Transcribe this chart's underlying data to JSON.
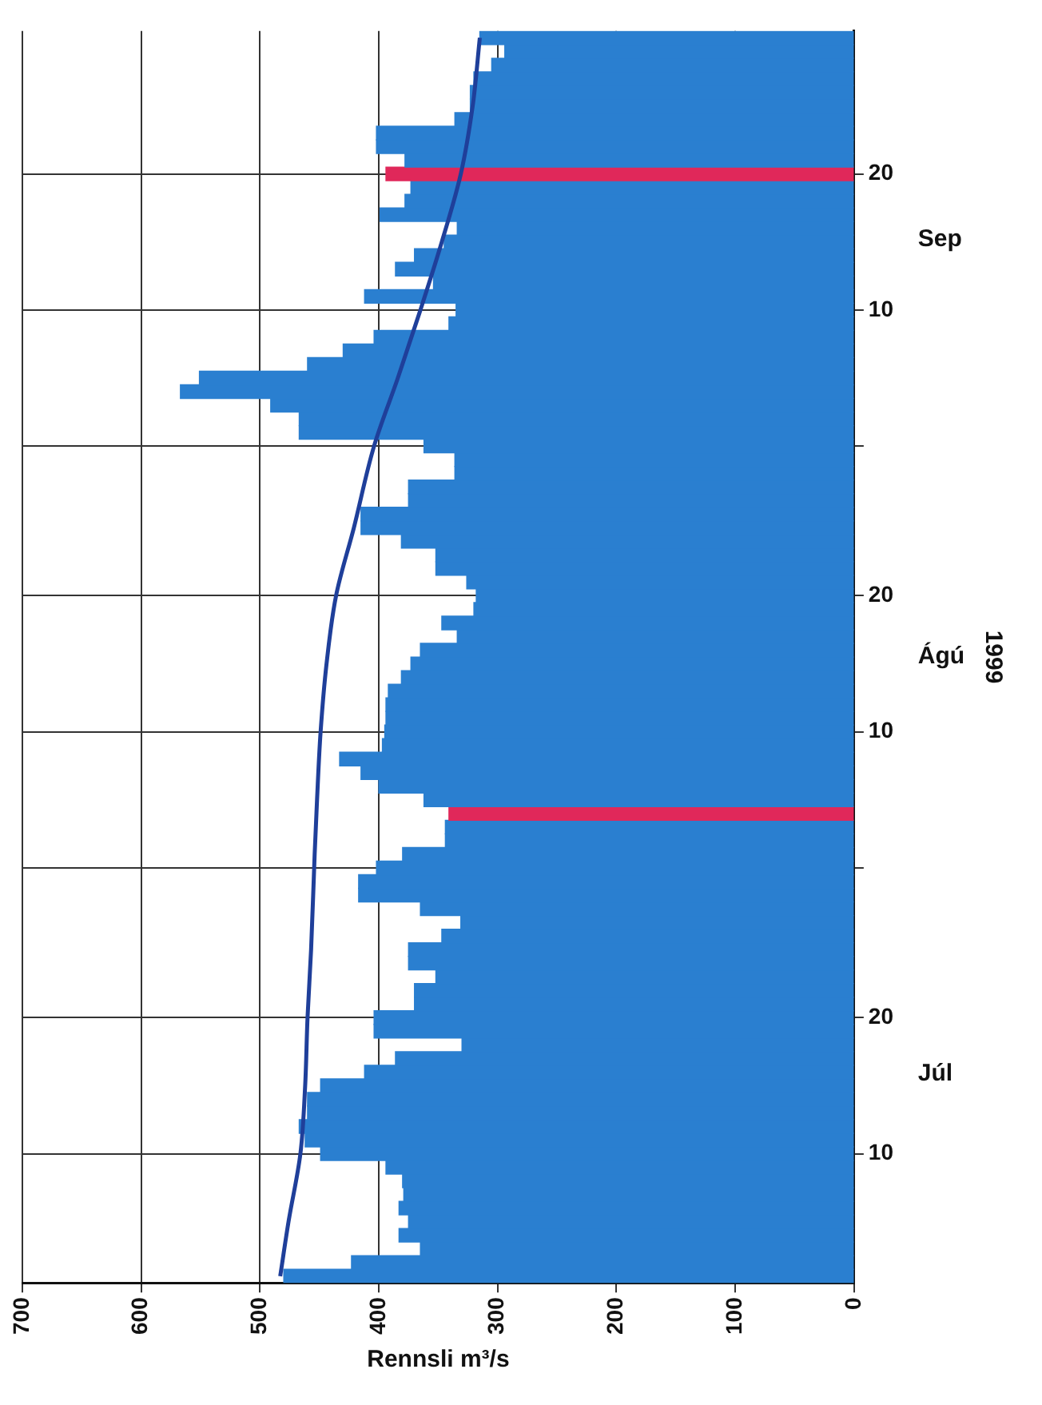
{
  "chart_data": {
    "type": "bar",
    "orientation": "horizontal",
    "xlabel": "Rennsli m³/s",
    "ylabel": "1999",
    "annotations": [
      "Júl",
      "Ágú",
      "Sep"
    ],
    "x": [
      "1999-07-01",
      "1999-07-02",
      "1999-07-03",
      "1999-07-04",
      "1999-07-05",
      "1999-07-06",
      "1999-07-07",
      "1999-07-08",
      "1999-07-09",
      "1999-07-10",
      "1999-07-11",
      "1999-07-12",
      "1999-07-13",
      "1999-07-14",
      "1999-07-15",
      "1999-07-16",
      "1999-07-17",
      "1999-07-18",
      "1999-07-19",
      "1999-07-20",
      "1999-07-21",
      "1999-07-22",
      "1999-07-23",
      "1999-07-24",
      "1999-07-25",
      "1999-07-26",
      "1999-07-27",
      "1999-07-28",
      "1999-07-29",
      "1999-07-30",
      "1999-07-31",
      "1999-08-01",
      "1999-08-02",
      "1999-08-03",
      "1999-08-04",
      "1999-08-05",
      "1999-08-06",
      "1999-08-07",
      "1999-08-08",
      "1999-08-09",
      "1999-08-10",
      "1999-08-11",
      "1999-08-12",
      "1999-08-13",
      "1999-08-14",
      "1999-08-15",
      "1999-08-16",
      "1999-08-17",
      "1999-08-18",
      "1999-08-19",
      "1999-08-20",
      "1999-08-21",
      "1999-08-22",
      "1999-08-23",
      "1999-08-24",
      "1999-08-25",
      "1999-08-26",
      "1999-08-27",
      "1999-08-28",
      "1999-08-29",
      "1999-08-30",
      "1999-08-31",
      "1999-09-01",
      "1999-09-02",
      "1999-09-03",
      "1999-09-04",
      "1999-09-05",
      "1999-09-06",
      "1999-09-07",
      "1999-09-08",
      "1999-09-09",
      "1999-09-10",
      "1999-09-11",
      "1999-09-12",
      "1999-09-13",
      "1999-09-14",
      "1999-09-15",
      "1999-09-16",
      "1999-09-17",
      "1999-09-18",
      "1999-09-19",
      "1999-09-20",
      "1999-09-21",
      "1999-09-22",
      "1999-09-23",
      "1999-09-24",
      "1999-09-25",
      "1999-09-26",
      "1999-09-27",
      "1999-09-28",
      "1999-09-29",
      "1999-09-30"
    ],
    "series": [
      {
        "color": "#2a7fd0",
        "values": [
          480,
          423,
          365,
          383,
          375,
          383,
          379,
          380,
          394,
          449,
          462,
          467,
          460,
          460,
          449,
          412,
          386,
          330,
          404,
          404,
          370,
          370,
          352,
          375,
          375,
          347,
          331,
          365,
          417,
          417,
          402,
          380,
          344,
          344,
          341,
          362,
          400,
          415,
          433,
          397,
          395,
          394,
          394,
          392,
          381,
          373,
          365,
          334,
          347,
          320,
          318,
          326,
          352,
          352,
          381,
          415,
          415,
          375,
          375,
          336,
          336,
          362,
          467,
          467,
          491,
          567,
          551,
          460,
          430,
          404,
          341,
          335,
          412,
          354,
          386,
          370,
          345,
          334,
          399,
          378,
          373,
          394,
          378,
          402,
          402,
          336,
          323,
          323,
          320,
          305,
          294,
          315
        ],
        "colors": [
          null,
          null,
          null,
          null,
          null,
          null,
          null,
          null,
          null,
          null,
          null,
          null,
          null,
          null,
          null,
          null,
          null,
          null,
          null,
          null,
          null,
          null,
          null,
          null,
          null,
          null,
          null,
          null,
          null,
          null,
          null,
          null,
          null,
          null,
          "#e0285a",
          null,
          null,
          null,
          null,
          null,
          null,
          null,
          null,
          null,
          null,
          null,
          null,
          null,
          null,
          null,
          null,
          null,
          null,
          null,
          null,
          null,
          null,
          null,
          null,
          null,
          null,
          null,
          null,
          null,
          null,
          null,
          null,
          null,
          null,
          null,
          null,
          null,
          null,
          null,
          null,
          null,
          null,
          null,
          null,
          null,
          null,
          "#e0285a",
          null,
          null,
          null,
          null,
          null,
          null,
          null,
          null,
          null,
          null
        ]
      },
      {
        "type": "line",
        "color": "#1f3f9a",
        "x": [
          "1999-07-01",
          "1999-07-05",
          "1999-07-10",
          "1999-07-15",
          "1999-07-20",
          "1999-07-25",
          "1999-08-01",
          "1999-08-05",
          "1999-08-10",
          "1999-08-15",
          "1999-08-20",
          "1999-08-25",
          "1999-08-31",
          "1999-09-05",
          "1999-09-10",
          "1999-09-15",
          "1999-09-20",
          "1999-09-25",
          "1999-09-30"
        ],
        "values": [
          483,
          476,
          466,
          462,
          460,
          457,
          454,
          452,
          449,
          444,
          436,
          421,
          404,
          384,
          365,
          347,
          331,
          321,
          315
        ]
      }
    ],
    "xlim": [
      700,
      0
    ],
    "xticks": [
      0,
      100,
      200,
      300,
      400,
      500,
      600,
      700
    ],
    "ylim": [
      "1999-06-30T12:00",
      "1999-09-30T12:00"
    ],
    "yticks": [
      {
        "value": "1999-07-10",
        "label": "10"
      },
      {
        "value": "1999-07-20",
        "label": "20"
      },
      {
        "value": "1999-07-31",
        "label": null
      },
      {
        "value": "1999-08-10",
        "label": "10"
      },
      {
        "value": "1999-08-20",
        "label": "20"
      },
      {
        "value": "1999-08-31",
        "label": null
      },
      {
        "value": "1999-09-10",
        "label": "10"
      },
      {
        "value": "1999-09-20",
        "label": "20"
      }
    ],
    "grid": true,
    "legend": false,
    "marker": "none",
    "line_style": "solid"
  }
}
